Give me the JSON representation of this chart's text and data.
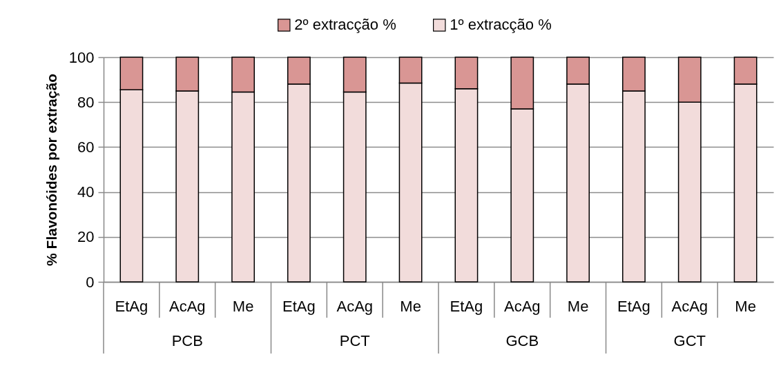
{
  "chart_data": {
    "type": "bar",
    "stacked": true,
    "ylabel": "% Flavonóides por extração",
    "categories": [
      "EtAg",
      "AcAg",
      "Me",
      "EtAg",
      "AcAg",
      "Me",
      "EtAg",
      "AcAg",
      "Me",
      "EtAg",
      "AcAg",
      "Me"
    ],
    "series": [
      {
        "name": "1º extracção %",
        "color": "#f2dcdb",
        "values": [
          85.5,
          85,
          84.5,
          88,
          84.5,
          88.5,
          86,
          77,
          88,
          85,
          80,
          88
        ]
      },
      {
        "name": "2º extracção %",
        "color": "#d99694",
        "values": [
          14.5,
          15,
          15.5,
          12,
          15.5,
          11.5,
          14,
          23,
          12,
          15,
          20,
          12
        ]
      }
    ],
    "ylim": [
      0,
      100
    ],
    "yticks": [
      0,
      20,
      40,
      60,
      80,
      100
    ],
    "grid": "y",
    "legend": "top",
    "annotations": [
      "PCB",
      "PCT",
      "GCB",
      "GCT"
    ]
  }
}
